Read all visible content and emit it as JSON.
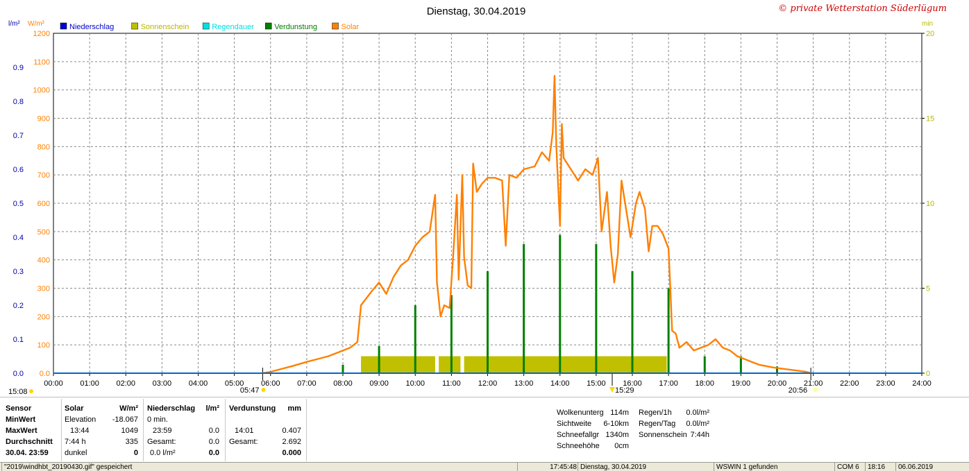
{
  "title": "Dienstag, 30.04.2019",
  "copyright": "© private Wetterstation Süderlügum",
  "chart_data": {
    "type": "line",
    "x_unit": "time of day (hours)",
    "xlim": [
      0,
      24
    ],
    "x_ticks": [
      "00:00",
      "01:00",
      "02:00",
      "03:00",
      "04:00",
      "05:00",
      "06:00",
      "07:00",
      "08:00",
      "09:00",
      "10:00",
      "11:00",
      "12:00",
      "13:00",
      "14:00",
      "15:00",
      "16:00",
      "17:00",
      "18:00",
      "19:00",
      "20:00",
      "21:00",
      "22:00",
      "23:00",
      "24:00"
    ],
    "axes": {
      "left_outer": {
        "label": "l/m²",
        "range": [
          0,
          1
        ],
        "ticks": [
          "0.0",
          "0.1",
          "0.2",
          "0.3",
          "0.4",
          "0.5",
          "0.6",
          "0.7",
          "0.8",
          "0.9"
        ],
        "color": "#0000aa"
      },
      "left_inner": {
        "label": "W/m²",
        "range": [
          0,
          1200
        ],
        "ticks": [
          "0.0",
          "100",
          "200",
          "300",
          "400",
          "500",
          "600",
          "700",
          "800",
          "900",
          "1000",
          "1100",
          "1200"
        ],
        "color": "#ff8000"
      },
      "right": {
        "label": "min",
        "range": [
          0,
          20
        ],
        "ticks": [
          "0",
          "5",
          "10",
          "15",
          "20"
        ],
        "color": "#b8b800"
      }
    },
    "grid": true,
    "legend_position": "top-left",
    "legend": [
      {
        "name": "Niederschlag",
        "color": "#0000cc"
      },
      {
        "name": "Sonnenschein",
        "color": "#c0c000"
      },
      {
        "name": "Regendauer",
        "color": "#00e0e0"
      },
      {
        "name": "Verdunstung",
        "color": "#008000"
      },
      {
        "name": "Solar",
        "color": "#ff8000"
      }
    ],
    "series": [
      {
        "name": "Solar",
        "axis": "left_inner",
        "color": "#ff8000",
        "points": [
          [
            5.78,
            0
          ],
          [
            6.0,
            5
          ],
          [
            6.3,
            15
          ],
          [
            6.6,
            25
          ],
          [
            7.0,
            40
          ],
          [
            7.3,
            50
          ],
          [
            7.6,
            60
          ],
          [
            7.9,
            75
          ],
          [
            8.2,
            90
          ],
          [
            8.4,
            110
          ],
          [
            8.5,
            240
          ],
          [
            8.8,
            290
          ],
          [
            9.0,
            320
          ],
          [
            9.2,
            280
          ],
          [
            9.4,
            340
          ],
          [
            9.6,
            380
          ],
          [
            9.8,
            400
          ],
          [
            10.0,
            450
          ],
          [
            10.2,
            480
          ],
          [
            10.4,
            500
          ],
          [
            10.55,
            630
          ],
          [
            10.6,
            320
          ],
          [
            10.7,
            200
          ],
          [
            10.8,
            240
          ],
          [
            10.95,
            230
          ],
          [
            11.05,
            420
          ],
          [
            11.15,
            630
          ],
          [
            11.2,
            330
          ],
          [
            11.3,
            700
          ],
          [
            11.35,
            410
          ],
          [
            11.45,
            310
          ],
          [
            11.55,
            300
          ],
          [
            11.6,
            740
          ],
          [
            11.7,
            640
          ],
          [
            11.85,
            670
          ],
          [
            12.0,
            690
          ],
          [
            12.2,
            690
          ],
          [
            12.4,
            680
          ],
          [
            12.5,
            450
          ],
          [
            12.6,
            700
          ],
          [
            12.8,
            690
          ],
          [
            13.0,
            720
          ],
          [
            13.3,
            730
          ],
          [
            13.5,
            780
          ],
          [
            13.7,
            750
          ],
          [
            13.8,
            850
          ],
          [
            13.85,
            1050
          ],
          [
            13.9,
            800
          ],
          [
            14.0,
            520
          ],
          [
            14.05,
            880
          ],
          [
            14.1,
            760
          ],
          [
            14.3,
            720
          ],
          [
            14.5,
            680
          ],
          [
            14.7,
            720
          ],
          [
            14.9,
            700
          ],
          [
            15.05,
            760
          ],
          [
            15.15,
            500
          ],
          [
            15.3,
            640
          ],
          [
            15.4,
            450
          ],
          [
            15.5,
            320
          ],
          [
            15.6,
            420
          ],
          [
            15.7,
            680
          ],
          [
            15.8,
            600
          ],
          [
            15.95,
            480
          ],
          [
            16.1,
            600
          ],
          [
            16.2,
            640
          ],
          [
            16.35,
            580
          ],
          [
            16.45,
            430
          ],
          [
            16.55,
            520
          ],
          [
            16.7,
            520
          ],
          [
            16.85,
            490
          ],
          [
            17.0,
            440
          ],
          [
            17.05,
            300
          ],
          [
            17.1,
            150
          ],
          [
            17.2,
            140
          ],
          [
            17.3,
            90
          ],
          [
            17.5,
            110
          ],
          [
            17.7,
            80
          ],
          [
            17.9,
            90
          ],
          [
            18.1,
            100
          ],
          [
            18.3,
            120
          ],
          [
            18.5,
            90
          ],
          [
            18.7,
            80
          ],
          [
            18.9,
            60
          ],
          [
            19.1,
            50
          ],
          [
            19.3,
            40
          ],
          [
            19.5,
            30
          ],
          [
            19.7,
            25
          ],
          [
            19.9,
            20
          ],
          [
            20.2,
            15
          ],
          [
            20.5,
            10
          ],
          [
            20.8,
            5
          ],
          [
            20.95,
            0
          ]
        ]
      },
      {
        "name": "Sonnenschein",
        "axis": "right",
        "color": "#c0c000",
        "type": "bar",
        "bars": [
          [
            8.5,
            10.55,
            1
          ],
          [
            10.65,
            11.25,
            1
          ],
          [
            11.35,
            16.95,
            1
          ]
        ]
      },
      {
        "name": "Verdunstung",
        "axis": "left_outer",
        "color": "#008000",
        "type": "spikes",
        "values": [
          [
            8.0,
            0.025
          ],
          [
            9.0,
            0.08
          ],
          [
            10.0,
            0.2
          ],
          [
            11.0,
            0.23
          ],
          [
            12.0,
            0.3
          ],
          [
            13.0,
            0.38
          ],
          [
            14.0,
            0.407
          ],
          [
            15.0,
            0.38
          ],
          [
            16.0,
            0.3
          ],
          [
            17.0,
            0.25
          ],
          [
            18.0,
            0.05
          ],
          [
            19.0,
            0.05
          ],
          [
            20.0,
            0.02
          ]
        ]
      },
      {
        "name": "Niederschlag",
        "axis": "left_outer",
        "color": "#0066cc",
        "type": "line",
        "values": [
          [
            0,
            0
          ],
          [
            24,
            0
          ]
        ]
      }
    ],
    "sun_markers": {
      "left": "15:08",
      "sunrise": "05:47",
      "noon": "15:29",
      "sunset": "20:56"
    }
  },
  "panel": {
    "sensor": {
      "header": "Sensor",
      "rows": [
        "MinWert",
        "MaxWert",
        "Durchschnitt",
        "30.04. 23:59"
      ]
    },
    "solar": {
      "header": "Solar",
      "unit": "W/m²",
      "rows": [
        [
          "Elevation",
          "-18.067"
        ],
        [
          "13:44",
          "1049"
        ],
        [
          "7:44 h",
          "335"
        ],
        [
          "dunkel",
          "0"
        ]
      ]
    },
    "niederschlag": {
      "header": "Niederschlag",
      "unit": "l/m²",
      "rows": [
        [
          "0 min.",
          ""
        ],
        [
          "23:59",
          "0.0"
        ],
        [
          "Gesamt:",
          "0.0"
        ],
        [
          "0.0 l/m²",
          "0.0"
        ]
      ]
    },
    "verdunstung": {
      "header": "Verdunstung",
      "unit": "mm",
      "rows": [
        [
          "",
          ""
        ],
        [
          "14:01",
          "0.407"
        ],
        [
          "Gesamt:",
          "2.692"
        ],
        [
          "",
          "0.000"
        ]
      ]
    },
    "weather": [
      [
        "Wolkenunterg",
        "114m"
      ],
      [
        "Sichtweite",
        "6-10km"
      ],
      [
        "Schneefallgr",
        "1340m"
      ],
      [
        "Schneehöhe",
        "0cm"
      ]
    ],
    "rain": [
      [
        "Regen/1h",
        "0.0l/m²"
      ],
      [
        "Regen/Tag",
        "0.0l/m²"
      ],
      [
        "Sonnenschein",
        "7:44h"
      ]
    ]
  },
  "status": {
    "file": "\"2019\\windhbt_20190430.gif\" gespeichert",
    "time": "17:45:48",
    "date": "Dienstag, 30.04.2019",
    "found": "WSWIN 1 gefunden",
    "com": "COM 6",
    "clock": "18:16",
    "today": "06.06.2019"
  }
}
